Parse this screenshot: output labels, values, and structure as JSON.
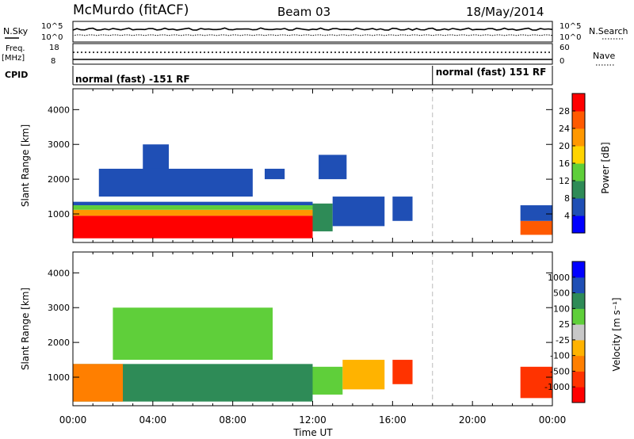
{
  "header": {
    "station": "McMurdo (fitACF)",
    "beam": "Beam 03",
    "date": "18/May/2014"
  },
  "top_panels": {
    "nsky_label": "N.Sky",
    "nsky_ticks": [
      "10^5",
      "10^0"
    ],
    "nsearch_label": "N.Search",
    "nsearch_ticks": [
      "10^5",
      "10^0"
    ],
    "freq_label": "Freq.",
    "freq_unit": "[MHz]",
    "freq_ticks": [
      "18",
      "8"
    ],
    "nave_label": "Nave",
    "nave_ticks": [
      "60",
      "0"
    ],
    "cpid_label": "CPID",
    "cpid_segments": [
      {
        "label": "normal (fast) -151 RF",
        "start_hour": 0,
        "end_hour": 18
      },
      {
        "label": "normal (fast) 151 RF",
        "start_hour": 18,
        "end_hour": 24
      }
    ]
  },
  "chart_data": [
    {
      "type": "heatmap",
      "name": "power",
      "ylabel": "Slant Range [km]",
      "xlabel": "Time UT",
      "x_ticks": [
        "00:00",
        "04:00",
        "08:00",
        "12:00",
        "16:00",
        "20:00",
        "00:00"
      ],
      "y_ticks": [
        1000,
        2000,
        3000,
        4000
      ],
      "xlim_hours": [
        0,
        24
      ],
      "ylim_km": [
        180,
        4600
      ],
      "colorbar": {
        "label": "Power [dB]",
        "ticks": [
          "4",
          "8",
          "12",
          "16",
          "20",
          "24",
          "28"
        ],
        "colors": [
          "#0000ff",
          "#1f4fb5",
          "#2e8b57",
          "#5fcf3a",
          "#ffd400",
          "#ff9800",
          "#ff5a00",
          "#ff0000"
        ]
      },
      "regions": [
        {
          "t0": 0.0,
          "t1": 12.0,
          "r0": 300,
          "r1": 950,
          "level": 7
        },
        {
          "t0": 0.0,
          "t1": 12.0,
          "r0": 950,
          "r1": 1120,
          "level": 5
        },
        {
          "t0": 0.0,
          "t1": 12.0,
          "r0": 1120,
          "r1": 1250,
          "level": 3
        },
        {
          "t0": 0.0,
          "t1": 12.0,
          "r0": 1250,
          "r1": 1350,
          "level": 1
        },
        {
          "t0": 12.0,
          "t1": 13.0,
          "r0": 500,
          "r1": 1300,
          "level": 2
        },
        {
          "t0": 13.0,
          "t1": 15.6,
          "r0": 650,
          "r1": 1500,
          "level": 1
        },
        {
          "t0": 16.0,
          "t1": 17.0,
          "r0": 800,
          "r1": 1500,
          "level": 1
        },
        {
          "t0": 22.4,
          "t1": 24.0,
          "r0": 400,
          "r1": 800,
          "level": 6
        },
        {
          "t0": 22.4,
          "t1": 24.0,
          "r0": 800,
          "r1": 1250,
          "level": 1
        },
        {
          "t0": 3.5,
          "t1": 4.8,
          "r0": 2000,
          "r1": 3000,
          "level": 1
        },
        {
          "t0": 1.3,
          "t1": 9.0,
          "r0": 1500,
          "r1": 2300,
          "level": 1
        },
        {
          "t0": 9.6,
          "t1": 10.6,
          "r0": 2000,
          "r1": 2300,
          "level": 1
        },
        {
          "t0": 12.3,
          "t1": 13.7,
          "r0": 2000,
          "r1": 2700,
          "level": 1
        }
      ]
    },
    {
      "type": "heatmap",
      "name": "velocity",
      "ylabel": "Slant Range [km]",
      "xlabel": "Time UT",
      "x_ticks": [
        "00:00",
        "04:00",
        "08:00",
        "12:00",
        "16:00",
        "20:00",
        "00:00"
      ],
      "y_ticks": [
        1000,
        2000,
        3000,
        4000
      ],
      "xlim_hours": [
        0,
        24
      ],
      "ylim_km": [
        180,
        4600
      ],
      "colorbar": {
        "label": "Velocity [m s⁻¹]",
        "ticks": [
          "1000",
          "500",
          "100",
          "25",
          "-25",
          "-100",
          "-500",
          "-1000"
        ],
        "colors": [
          "#0000ff",
          "#1f4fb5",
          "#2e8b57",
          "#5fcf3a",
          "#c8c8c8",
          "#ffb300",
          "#ff7f00",
          "#ff3300",
          "#ff0000"
        ]
      },
      "regions": [
        {
          "t0": 0.0,
          "t1": 12.0,
          "r0": 300,
          "r1": 1380,
          "level": 2
        },
        {
          "t0": 0.0,
          "t1": 2.5,
          "r0": 300,
          "r1": 1380,
          "level": 6
        },
        {
          "t0": 12.0,
          "t1": 13.5,
          "r0": 500,
          "r1": 1300,
          "level": 3
        },
        {
          "t0": 13.5,
          "t1": 15.6,
          "r0": 650,
          "r1": 1500,
          "level": 5
        },
        {
          "t0": 16.0,
          "t1": 17.0,
          "r0": 800,
          "r1": 1500,
          "level": 7
        },
        {
          "t0": 22.4,
          "t1": 24.0,
          "r0": 400,
          "r1": 1300,
          "level": 7
        },
        {
          "t0": 2.0,
          "t1": 10.0,
          "r0": 1500,
          "r1": 3000,
          "level": 3
        }
      ]
    }
  ]
}
